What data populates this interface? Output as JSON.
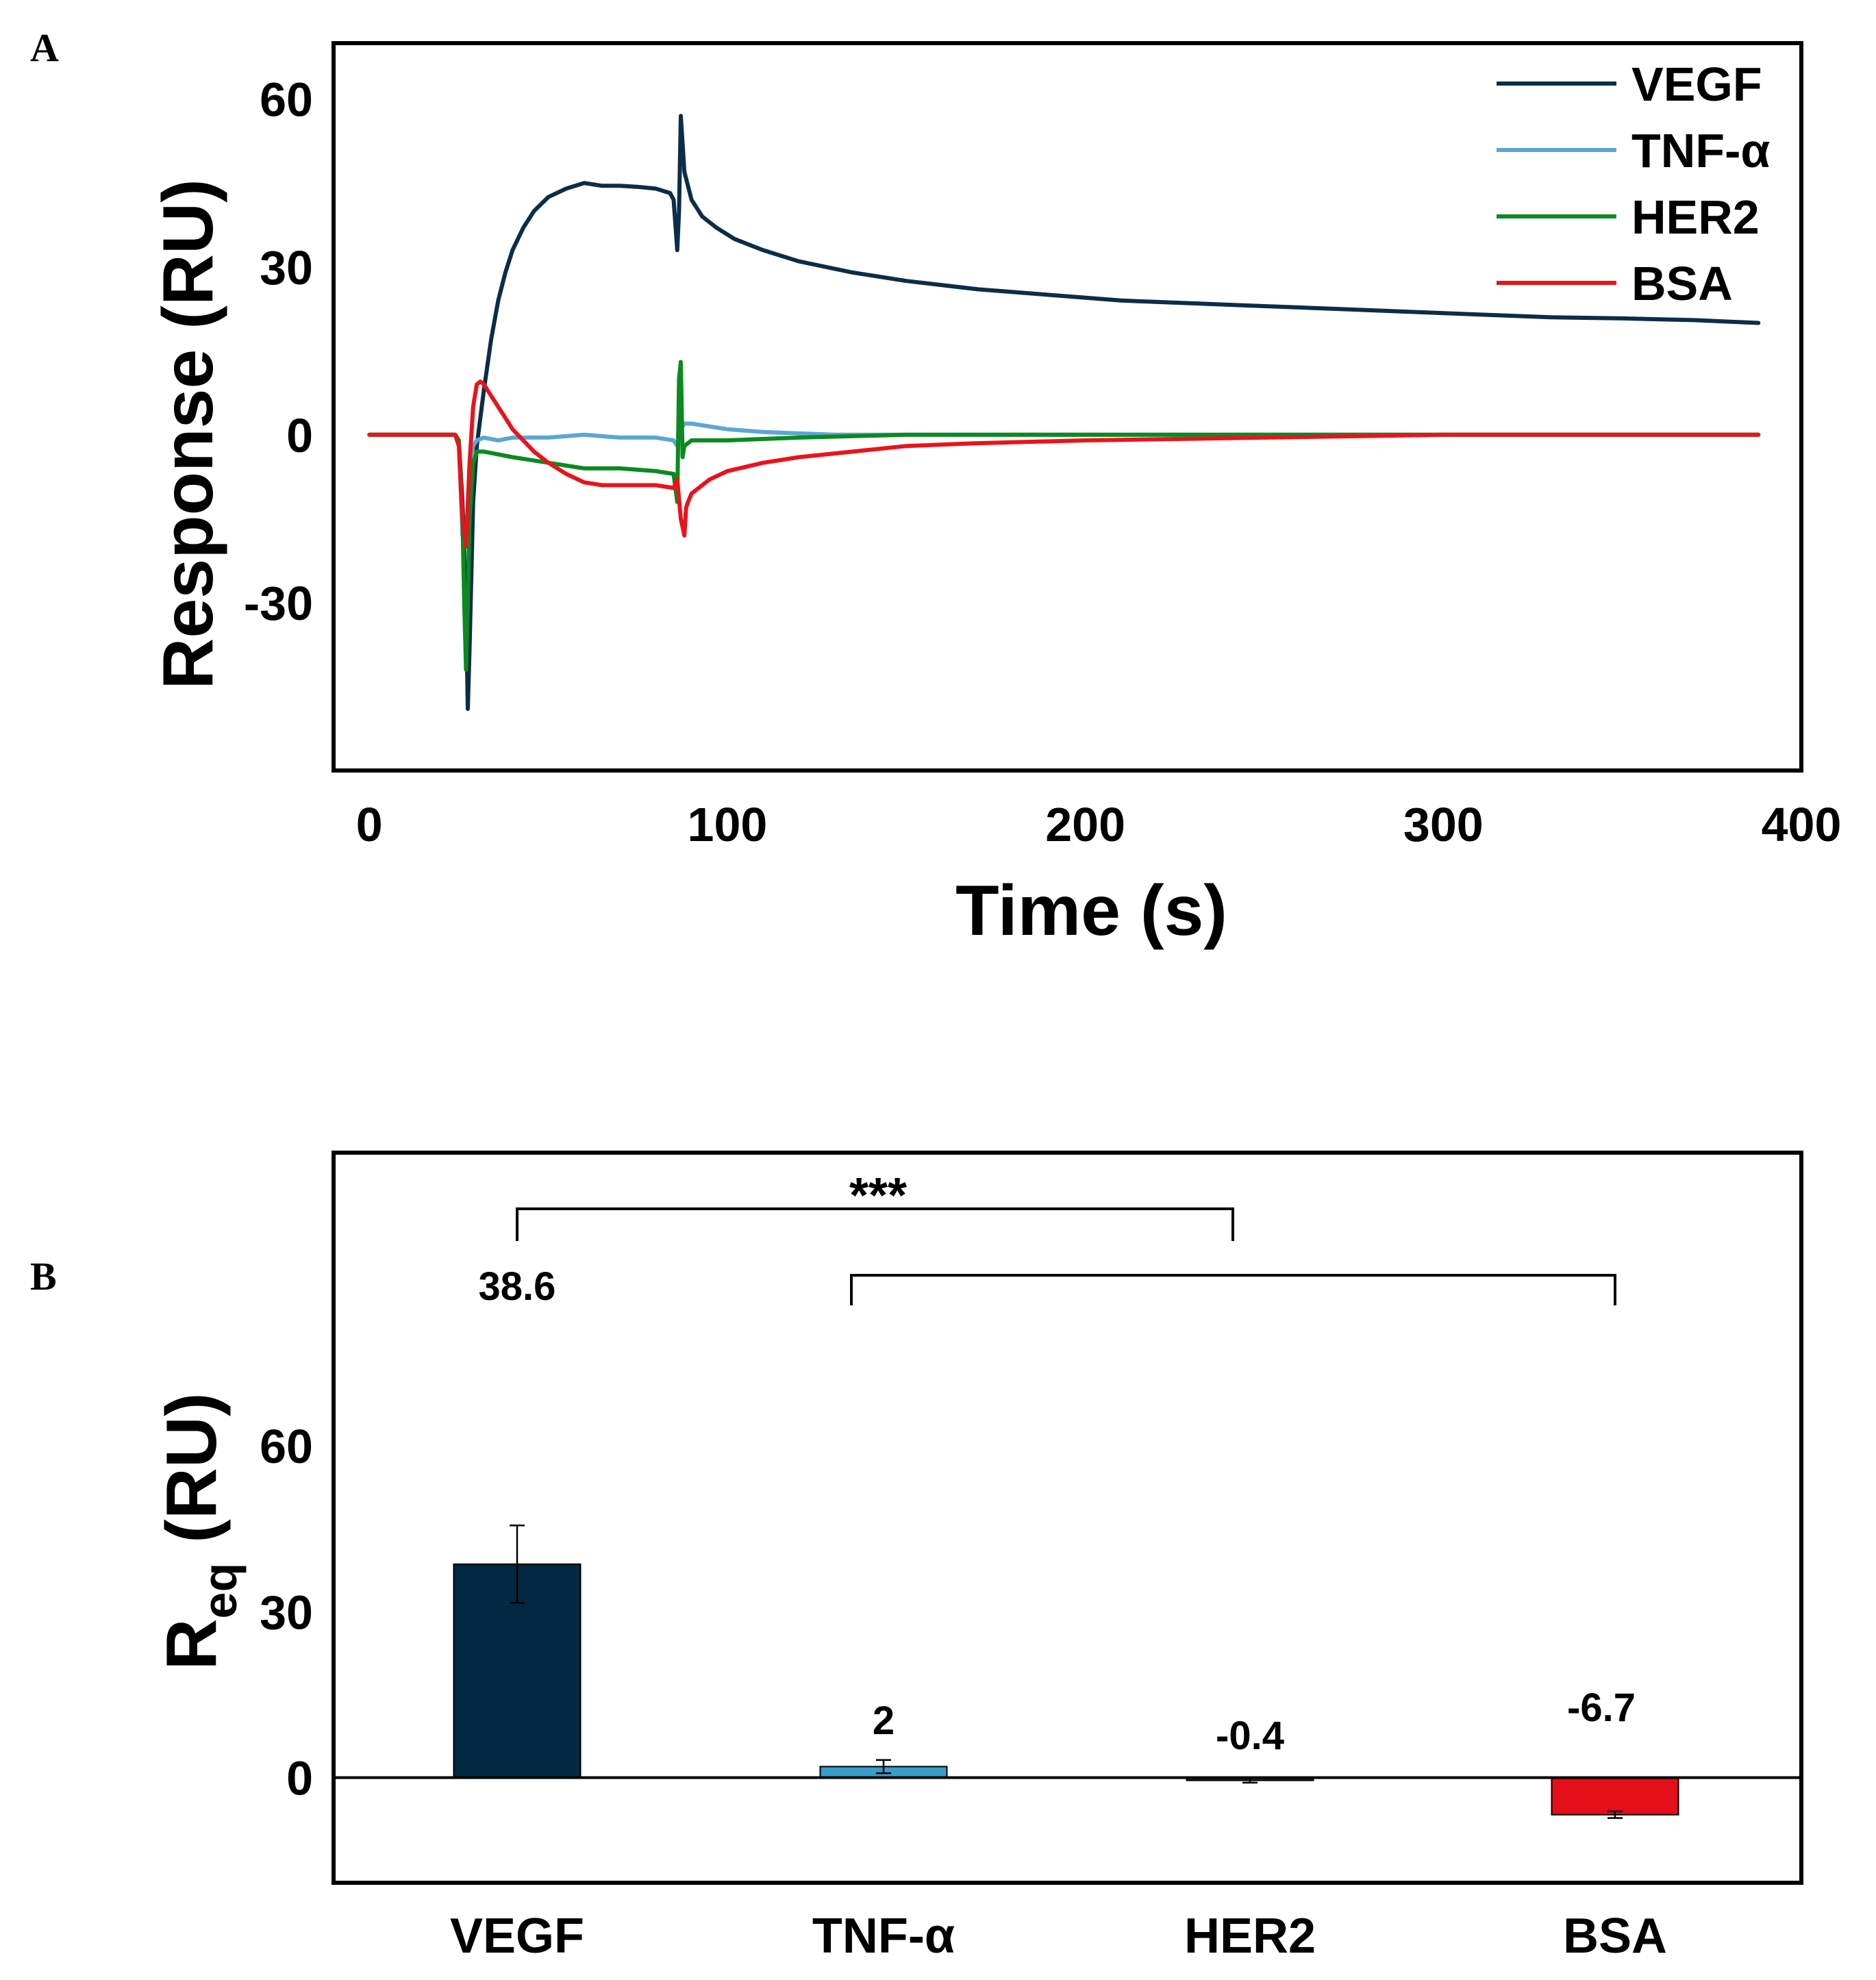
{
  "panels": {
    "a": "A",
    "b": "B"
  },
  "colors": {
    "VEGF": "#0c2d48",
    "TNF-α": "#5ba7d1",
    "HER2": "#0a8a1f",
    "BSA": "#e8141c",
    "bar_VEGF": "#022842",
    "bar_TNF": "#3b9ccb",
    "bar_HER2": "#1f3b3b",
    "bar_BSA": "#e40f18"
  },
  "chart_data": [
    {
      "type": "line",
      "panel": "A",
      "title": "",
      "xlabel": "Time (s)",
      "ylabel": "Response (RU)",
      "xlim": [
        -10,
        400
      ],
      "ylim": [
        -60,
        70
      ],
      "xticks": [
        0,
        100,
        200,
        300,
        400
      ],
      "yticks": [
        -30,
        0,
        30,
        60
      ],
      "legend_position": "top-right",
      "series": [
        {
          "name": "VEGF",
          "x": [
            0,
            24,
            25,
            26,
            27,
            27.5,
            28,
            29,
            30,
            32,
            34,
            36,
            38,
            40,
            43,
            46,
            50,
            55,
            60,
            65,
            70,
            75,
            80,
            84,
            85,
            86,
            86.5,
            87,
            88,
            90,
            93,
            97,
            102,
            110,
            120,
            135,
            150,
            170,
            190,
            210,
            230,
            250,
            270,
            290,
            310,
            330,
            350,
            370,
            388
          ],
          "y": [
            0,
            0,
            -1,
            -12,
            -30,
            -49,
            -38,
            -12,
            -2,
            8,
            17,
            24,
            29,
            33,
            37,
            40,
            42.5,
            44,
            45,
            44.5,
            44.5,
            44.3,
            44,
            43.2,
            42,
            33,
            40,
            57,
            47,
            42,
            39,
            37,
            35,
            33,
            31,
            29,
            27.5,
            26,
            25,
            24,
            23.5,
            23,
            22.5,
            22,
            21.5,
            21,
            20.8,
            20.5,
            20
          ]
        },
        {
          "name": "TNF-α",
          "x": [
            0,
            24,
            25,
            26,
            27,
            28,
            29,
            30,
            32,
            36,
            40,
            50,
            60,
            70,
            80,
            85,
            86,
            87,
            88,
            90,
            95,
            100,
            110,
            130,
            150,
            200,
            250,
            300,
            388
          ],
          "y": [
            0,
            0,
            -1,
            -18,
            -20,
            -5,
            -2,
            -1,
            -0.5,
            -1,
            -0.5,
            -0.5,
            0,
            -0.5,
            -0.5,
            -1,
            -2,
            1,
            2,
            2,
            1.5,
            1,
            0.5,
            0,
            0,
            0,
            0,
            0,
            0
          ]
        },
        {
          "name": "HER2",
          "x": [
            0,
            24,
            25,
            26,
            26.5,
            27,
            27.5,
            28,
            29,
            30,
            32,
            36,
            40,
            50,
            60,
            70,
            80,
            85,
            86,
            86.5,
            87,
            87.5,
            88,
            90,
            100,
            120,
            150,
            200,
            250,
            300,
            388
          ],
          "y": [
            0,
            0,
            -1,
            -15,
            -30,
            -42,
            -30,
            -15,
            -5,
            -3,
            -3,
            -3.5,
            -4,
            -5,
            -6,
            -6,
            -6.5,
            -7,
            -12,
            10,
            13,
            -4,
            -2,
            -1,
            -1,
            -0.5,
            0,
            0,
            0,
            0,
            0
          ]
        },
        {
          "name": "BSA",
          "x": [
            0,
            10,
            20,
            24,
            25,
            26,
            27,
            28,
            29,
            30,
            31,
            32,
            34,
            36,
            38,
            40,
            43,
            46,
            50,
            55,
            60,
            65,
            70,
            75,
            80,
            85,
            86,
            87,
            88,
            88.5,
            89,
            90,
            92,
            95,
            100,
            110,
            120,
            135,
            150,
            170,
            200,
            250,
            300,
            388
          ],
          "y": [
            0,
            0,
            0,
            0,
            -2,
            -15,
            -20,
            -5,
            5,
            9,
            9.5,
            9,
            7,
            5,
            3,
            1,
            -1,
            -3,
            -5,
            -7,
            -8.5,
            -9,
            -9,
            -9,
            -9,
            -9.5,
            -8,
            -15,
            -18,
            -13,
            -12,
            -10.5,
            -9.5,
            -8,
            -6.5,
            -5,
            -4,
            -3,
            -2,
            -1.5,
            -1,
            -0.5,
            0,
            0
          ]
        }
      ]
    },
    {
      "type": "bar",
      "panel": "B",
      "title": "",
      "xlabel": "",
      "ylabel": "R",
      "ylabel_sub": "eq",
      "ylabel_suffix": " (RU)",
      "ylim": [
        -19,
        113
      ],
      "yticks": [
        0,
        30,
        60
      ],
      "categories": [
        "VEGF",
        "TNF-α",
        "HER2",
        "BSA"
      ],
      "values": [
        38.6,
        2,
        -0.4,
        -6.7
      ],
      "labels": [
        "38.6",
        "2",
        "-0.4",
        "-6.7"
      ],
      "errors": [
        7,
        1.2,
        0.5,
        0.6
      ],
      "significance": [
        {
          "from": "VEGF",
          "to": "HER2",
          "label": "***"
        },
        {
          "from": "TNF-α",
          "to": "BSA",
          "label": ""
        }
      ]
    }
  ]
}
